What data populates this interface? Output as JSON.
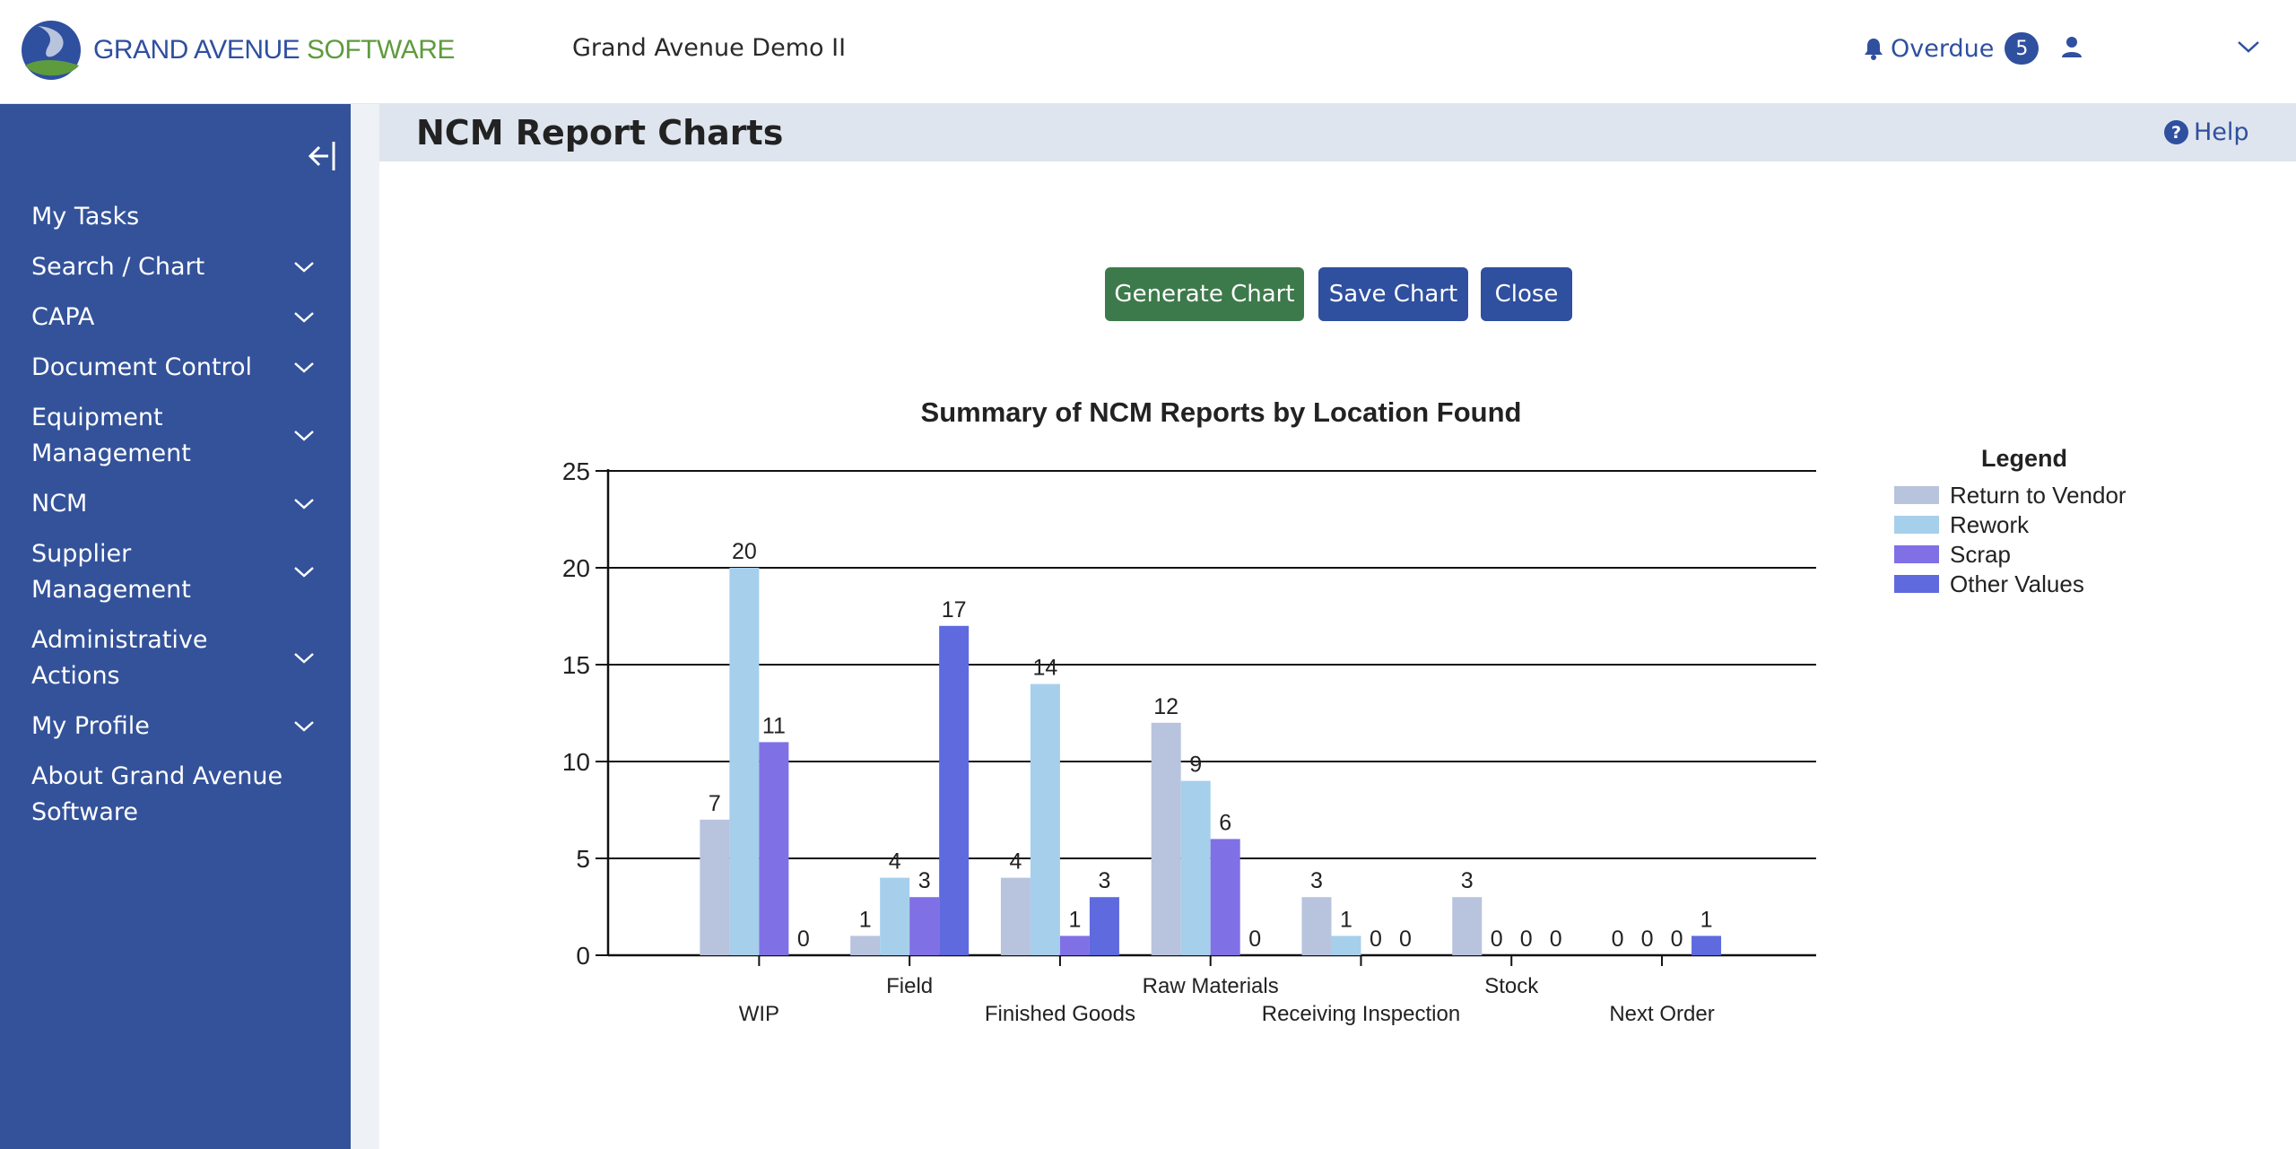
{
  "header": {
    "logo_text_a": "GRAND AVENUE",
    "logo_text_b": " SOFTWARE",
    "org_name": "Grand Avenue Demo II",
    "overdue_label": "Overdue",
    "overdue_count": "5"
  },
  "sidebar": {
    "items": [
      {
        "label": "My Tasks",
        "chevron": false
      },
      {
        "label": "Search / Chart",
        "chevron": true
      },
      {
        "label": "CAPA",
        "chevron": true
      },
      {
        "label": "Document Control",
        "chevron": true
      },
      {
        "label": "Equipment Management",
        "chevron": true
      },
      {
        "label": "NCM",
        "chevron": true
      },
      {
        "label": "Supplier Management",
        "chevron": true
      },
      {
        "label": "Administrative Actions",
        "chevron": true
      },
      {
        "label": "My Profile",
        "chevron": true
      },
      {
        "label": "About Grand Avenue Software",
        "chevron": false
      }
    ]
  },
  "page": {
    "title": "NCM Report Charts",
    "help_label": "Help",
    "buttons": {
      "generate": "Generate Chart",
      "save": "Save Chart",
      "close": "Close"
    }
  },
  "colors": {
    "sidebar_bg": "#33529a",
    "accent_blue": "#2f4f9f",
    "generate_green": "#3d7a4b"
  },
  "chart_data": {
    "type": "bar",
    "title": "Summary of NCM Reports by Location Found",
    "xlabel": "",
    "ylabel": "",
    "ylim": [
      0,
      25
    ],
    "yticks": [
      0,
      5,
      10,
      15,
      20,
      25
    ],
    "grid": true,
    "legend_title": "Legend",
    "legend_position": "right",
    "categories": [
      "WIP",
      "Field",
      "Finished Goods",
      "Raw Materials",
      "Receiving Inspection",
      "Stock",
      "Next Order"
    ],
    "series": [
      {
        "name": "Return to Vendor",
        "color": "#b8c3de",
        "values": [
          7,
          1,
          4,
          12,
          3,
          3,
          0
        ]
      },
      {
        "name": "Rework",
        "color": "#a6cfec",
        "values": [
          20,
          4,
          14,
          9,
          1,
          0,
          0
        ]
      },
      {
        "name": "Scrap",
        "color": "#8070e6",
        "values": [
          11,
          3,
          1,
          6,
          0,
          0,
          0
        ]
      },
      {
        "name": "Other Values",
        "color": "#5e6ade",
        "values": [
          0,
          17,
          3,
          0,
          0,
          0,
          1
        ]
      }
    ]
  }
}
